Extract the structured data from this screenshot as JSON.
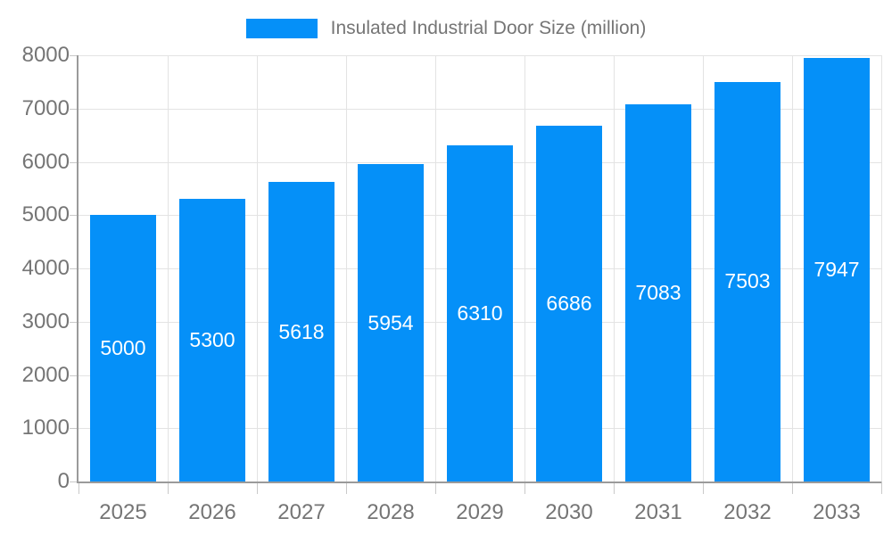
{
  "chart_data": {
    "type": "bar",
    "title": "Insulated Industrial Door Size (million)",
    "categories": [
      "2025",
      "2026",
      "2027",
      "2028",
      "2029",
      "2030",
      "2031",
      "2032",
      "2033"
    ],
    "values": [
      5000,
      5300,
      5618,
      5954,
      6310,
      6686,
      7083,
      7503,
      7947
    ],
    "value_labels": [
      "5000",
      "5300",
      "5618",
      "5954",
      "6310",
      "6686",
      "7083",
      "7503",
      "7947"
    ],
    "xlabel": "",
    "ylabel": "",
    "ylim": [
      0,
      8000
    ],
    "ytick_step": 1000,
    "yticks": [
      "0",
      "1000",
      "2000",
      "3000",
      "4000",
      "5000",
      "6000",
      "7000",
      "8000"
    ],
    "grid": true,
    "legend_position": "top",
    "colors": {
      "bar": "#0590f8",
      "value_label": "#ffffff",
      "axis_text": "#757575",
      "axis_line": "#9a9a9a",
      "gridline": "#e3e3e3",
      "tick": "#c9c9c9",
      "background": "#ffffff"
    }
  }
}
